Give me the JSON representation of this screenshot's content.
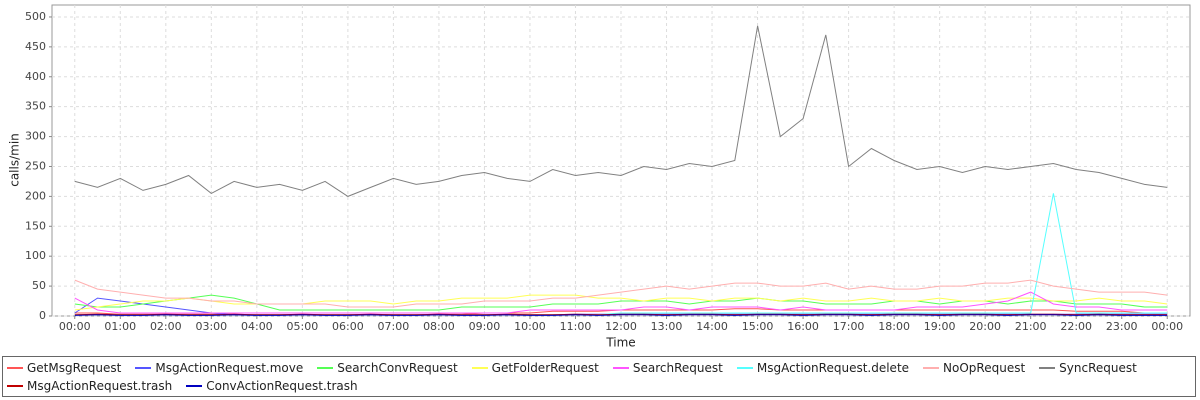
{
  "chart_data": {
    "type": "line",
    "x_label": "Time",
    "y_label": "calls/min",
    "x": [
      0,
      0.5,
      1,
      1.5,
      2,
      2.5,
      3,
      3.5,
      4,
      4.5,
      5,
      5.5,
      6,
      6.5,
      7,
      7.5,
      8,
      8.5,
      9,
      9.5,
      10,
      10.5,
      11,
      11.5,
      12,
      12.5,
      13,
      13.5,
      14,
      14.5,
      15,
      15.5,
      16,
      16.5,
      17,
      17.5,
      18,
      18.5,
      19,
      19.5,
      20,
      20.5,
      21,
      21.5,
      22,
      22.5,
      23,
      23.5,
      24
    ],
    "xlim": [
      -0.5,
      24.5
    ],
    "xticks": [
      {
        "value": 0,
        "label": "00:00"
      },
      {
        "value": 1,
        "label": "01:00"
      },
      {
        "value": 2,
        "label": "02:00"
      },
      {
        "value": 3,
        "label": "03:00"
      },
      {
        "value": 4,
        "label": "04:00"
      },
      {
        "value": 5,
        "label": "05:00"
      },
      {
        "value": 6,
        "label": "06:00"
      },
      {
        "value": 7,
        "label": "07:00"
      },
      {
        "value": 8,
        "label": "08:00"
      },
      {
        "value": 9,
        "label": "09:00"
      },
      {
        "value": 10,
        "label": "10:00"
      },
      {
        "value": 11,
        "label": "11:00"
      },
      {
        "value": 12,
        "label": "12:00"
      },
      {
        "value": 13,
        "label": "13:00"
      },
      {
        "value": 14,
        "label": "14:00"
      },
      {
        "value": 15,
        "label": "15:00"
      },
      {
        "value": 16,
        "label": "16:00"
      },
      {
        "value": 17,
        "label": "17:00"
      },
      {
        "value": 18,
        "label": "18:00"
      },
      {
        "value": 19,
        "label": "19:00"
      },
      {
        "value": 20,
        "label": "20:00"
      },
      {
        "value": 21,
        "label": "21:00"
      },
      {
        "value": 22,
        "label": "22:00"
      },
      {
        "value": 23,
        "label": "23:00"
      },
      {
        "value": 24,
        "label": "00:00"
      }
    ],
    "ylim": [
      0,
      520
    ],
    "yticks": [
      0,
      50,
      100,
      150,
      200,
      250,
      300,
      350,
      400,
      450,
      500
    ],
    "grid": true,
    "series": [
      {
        "name": "GetMsgRequest",
        "color": "#ff5555",
        "values": [
          5,
          5,
          3,
          3,
          3,
          3,
          3,
          3,
          2,
          2,
          2,
          2,
          2,
          2,
          2,
          2,
          3,
          3,
          5,
          5,
          5,
          8,
          8,
          8,
          10,
          10,
          10,
          10,
          10,
          12,
          12,
          10,
          10,
          10,
          10,
          10,
          10,
          10,
          10,
          10,
          10,
          10,
          10,
          10,
          8,
          8,
          8,
          5,
          5
        ]
      },
      {
        "name": "MsgActionRequest.move",
        "color": "#5555ff",
        "values": [
          5,
          30,
          25,
          20,
          15,
          10,
          5,
          2,
          2,
          2,
          2,
          2,
          2,
          2,
          2,
          2,
          2,
          2,
          2,
          2,
          2,
          2,
          3,
          3,
          3,
          3,
          3,
          3,
          3,
          3,
          3,
          3,
          3,
          3,
          3,
          3,
          3,
          3,
          3,
          3,
          3,
          3,
          3,
          3,
          3,
          3,
          3,
          3,
          3
        ]
      },
      {
        "name": "SearchConvRequest",
        "color": "#55ff55",
        "values": [
          20,
          15,
          15,
          20,
          25,
          30,
          35,
          30,
          20,
          10,
          10,
          10,
          10,
          10,
          10,
          10,
          10,
          15,
          15,
          15,
          15,
          20,
          20,
          20,
          25,
          25,
          25,
          20,
          25,
          25,
          30,
          25,
          25,
          20,
          20,
          20,
          25,
          25,
          20,
          25,
          25,
          20,
          25,
          25,
          20,
          20,
          20,
          15,
          15
        ]
      },
      {
        "name": "GetFolderRequest",
        "color": "#ffff55",
        "values": [
          10,
          15,
          20,
          25,
          25,
          30,
          25,
          20,
          20,
          20,
          20,
          25,
          25,
          25,
          20,
          25,
          25,
          30,
          30,
          30,
          35,
          35,
          35,
          30,
          30,
          25,
          30,
          30,
          25,
          30,
          30,
          25,
          30,
          25,
          25,
          30,
          25,
          25,
          30,
          25,
          25,
          30,
          30,
          25,
          25,
          30,
          25,
          25,
          20
        ]
      },
      {
        "name": "SearchRequest",
        "color": "#ff55ff",
        "values": [
          30,
          10,
          5,
          5,
          5,
          5,
          5,
          5,
          5,
          5,
          5,
          5,
          5,
          5,
          5,
          5,
          5,
          5,
          5,
          5,
          10,
          10,
          10,
          10,
          10,
          15,
          15,
          10,
          15,
          15,
          15,
          10,
          15,
          10,
          10,
          10,
          10,
          15,
          15,
          15,
          20,
          25,
          40,
          20,
          15,
          15,
          10,
          10,
          10
        ]
      },
      {
        "name": "MsgActionRequest.delete",
        "color": "#55ffff",
        "values": [
          2,
          2,
          2,
          2,
          2,
          2,
          2,
          2,
          2,
          2,
          2,
          2,
          2,
          2,
          2,
          2,
          2,
          2,
          2,
          2,
          2,
          2,
          2,
          2,
          5,
          5,
          5,
          5,
          5,
          5,
          5,
          5,
          5,
          5,
          5,
          5,
          5,
          5,
          5,
          5,
          5,
          5,
          5,
          205,
          5,
          5,
          5,
          5,
          5
        ]
      },
      {
        "name": "NoOpRequest",
        "color": "#ffafaf",
        "values": [
          60,
          45,
          40,
          35,
          30,
          30,
          25,
          25,
          20,
          20,
          20,
          20,
          15,
          15,
          15,
          20,
          20,
          20,
          25,
          25,
          25,
          30,
          30,
          35,
          40,
          45,
          50,
          45,
          50,
          55,
          55,
          50,
          50,
          55,
          45,
          50,
          45,
          45,
          50,
          50,
          55,
          55,
          60,
          50,
          45,
          40,
          40,
          40,
          35
        ]
      },
      {
        "name": "SyncRequest",
        "color": "#808080",
        "values": [
          225,
          215,
          230,
          210,
          220,
          235,
          205,
          225,
          215,
          220,
          210,
          225,
          200,
          215,
          230,
          220,
          225,
          235,
          240,
          230,
          225,
          245,
          235,
          240,
          235,
          250,
          245,
          255,
          250,
          260,
          485,
          300,
          330,
          470,
          250,
          280,
          260,
          245,
          250,
          240,
          250,
          245,
          250,
          255,
          245,
          240,
          230,
          220,
          215
        ]
      },
      {
        "name": "MsgActionRequest.trash",
        "color": "#c00000",
        "values": [
          2,
          3,
          2,
          2,
          3,
          2,
          2,
          3,
          2,
          2,
          3,
          2,
          2,
          3,
          2,
          2,
          3,
          2,
          2,
          3,
          2,
          2,
          3,
          2,
          3,
          3,
          2,
          3,
          3,
          2,
          3,
          3,
          2,
          3,
          3,
          2,
          3,
          3,
          2,
          3,
          3,
          2,
          3,
          3,
          2,
          3,
          2,
          2,
          2
        ]
      },
      {
        "name": "ConvActionRequest.trash",
        "color": "#0000c0",
        "values": [
          1,
          2,
          1,
          1,
          2,
          1,
          1,
          2,
          1,
          1,
          2,
          1,
          1,
          2,
          1,
          1,
          2,
          1,
          1,
          2,
          1,
          1,
          2,
          1,
          2,
          2,
          1,
          2,
          2,
          1,
          2,
          2,
          1,
          2,
          2,
          1,
          2,
          2,
          1,
          2,
          2,
          1,
          2,
          2,
          1,
          2,
          1,
          1,
          1
        ]
      }
    ]
  }
}
